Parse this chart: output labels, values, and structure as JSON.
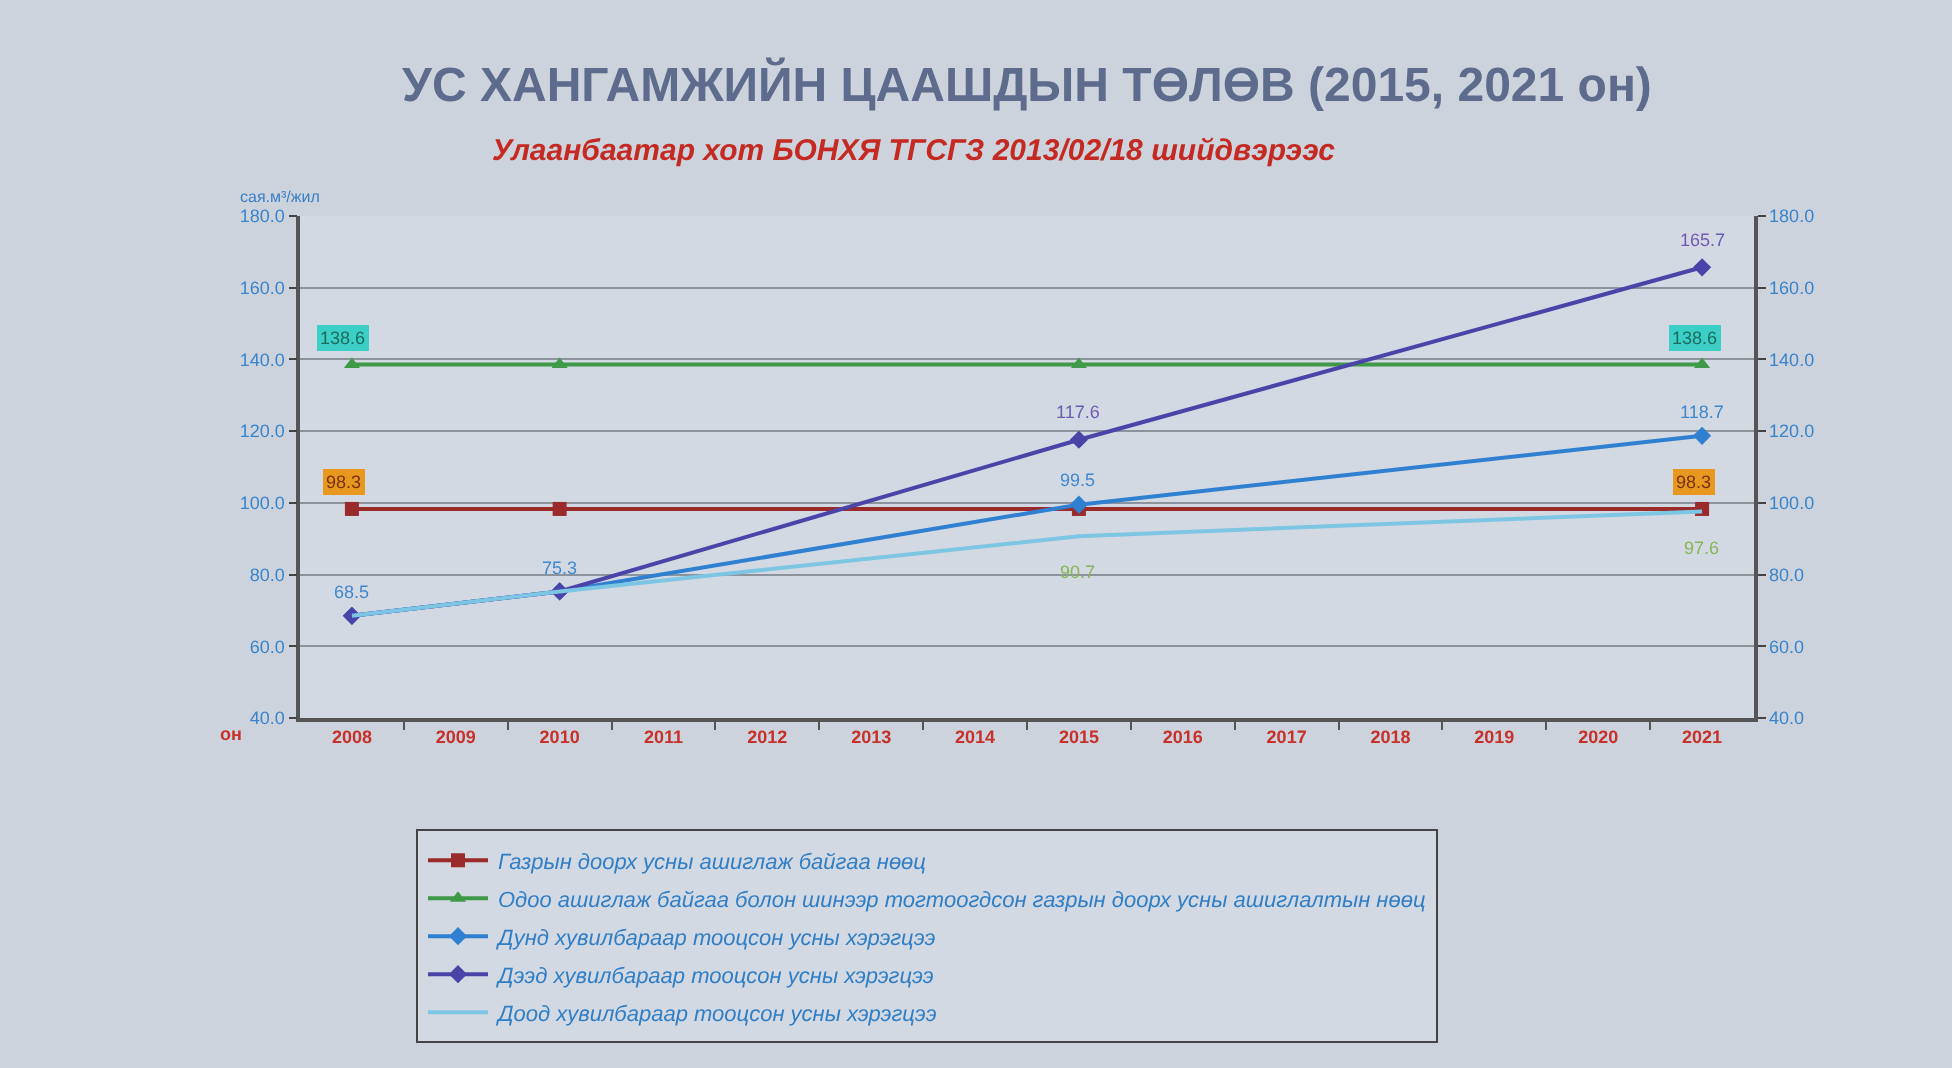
{
  "chart_data": {
    "type": "line",
    "title": "УС ХАНГАМЖИЙН ЦААШДЫН ТӨЛӨВ (2015, 2021 он)",
    "subtitle": "Улаанбаатар хот БОНХЯ ТГСГЗ 2013/02/18 шийдвэрээс",
    "ylabel": "сая.м³/жил",
    "xlabel": "он",
    "xlim": [
      2007.5,
      2021.5
    ],
    "xticks": [
      2008,
      2009,
      2010,
      2011,
      2012,
      2013,
      2014,
      2015,
      2016,
      2017,
      2018,
      2019,
      2020,
      2021
    ],
    "ylim": [
      40,
      180
    ],
    "yticks": [
      {
        "value": 40,
        "label": "40.0"
      },
      {
        "value": 60,
        "label": "60.0"
      },
      {
        "value": 80,
        "label": "80.0"
      },
      {
        "value": 100,
        "label": "100.0"
      },
      {
        "value": 120,
        "label": "120.0"
      },
      {
        "value": 140,
        "label": "140.0"
      },
      {
        "value": 160,
        "label": "160.0"
      },
      {
        "value": 180,
        "label": "180.0"
      }
    ],
    "y2lim": [
      40,
      180
    ],
    "y2ticks": [
      {
        "value": 40,
        "label": "40.0"
      },
      {
        "value": 60,
        "label": "60.0"
      },
      {
        "value": 80,
        "label": "80.0"
      },
      {
        "value": 100,
        "label": "100.0"
      },
      {
        "value": 120,
        "label": "120.0"
      },
      {
        "value": 140,
        "label": "140.0"
      },
      {
        "value": 160,
        "label": "160.0"
      },
      {
        "value": 180,
        "label": "180.0"
      }
    ],
    "grid": "y",
    "legend": "bottom",
    "series": [
      {
        "name": "Газрын доорх усны ашиглаж байгаа нөөц",
        "color": "#9b2a2a",
        "marker": "square",
        "x": [
          2008,
          2010,
          2015,
          2021
        ],
        "values": [
          98.3,
          98.3,
          98.3,
          98.3
        ],
        "value_labels": [
          "98.3",
          null,
          null,
          "98.3"
        ]
      },
      {
        "name": "Одоо ашиглаж байгаа болон шинээр тогтоогдсон газрын доорх усны ашиглалтын нөөц",
        "color": "#3f9a48",
        "marker": "triangle",
        "x": [
          2008,
          2010,
          2015,
          2021
        ],
        "values": [
          138.6,
          138.6,
          138.6,
          138.6
        ],
        "value_labels": [
          "138.6",
          null,
          null,
          "138.6"
        ]
      },
      {
        "name": "Дунд хувилбараар тооцсон усны хэрэгцээ",
        "color": "#2f80d0",
        "marker": "diamond",
        "x": [
          2008,
          2010,
          2015,
          2021
        ],
        "values": [
          68.5,
          75.3,
          99.5,
          118.7
        ],
        "value_labels": [
          "68.5",
          "75.3",
          "99.5",
          "118.7"
        ]
      },
      {
        "name": "Дээд хувилбараар тооцсон усны хэрэгцээ",
        "color": "#4a44a8",
        "marker": "diamond",
        "x": [
          2008,
          2010,
          2015,
          2021
        ],
        "values": [
          68.5,
          75.3,
          117.6,
          165.7
        ],
        "value_labels": [
          null,
          null,
          "117.6",
          "165.7"
        ]
      },
      {
        "name": "Доод хувилбараар тооцсон усны хэрэгцээ",
        "color": "#7cc6e4",
        "marker": "none",
        "x": [
          2008,
          2010,
          2015,
          2021
        ],
        "values": [
          68.5,
          75.3,
          90.7,
          97.6
        ],
        "value_labels": [
          null,
          null,
          "90.7",
          "97.6"
        ]
      }
    ]
  }
}
